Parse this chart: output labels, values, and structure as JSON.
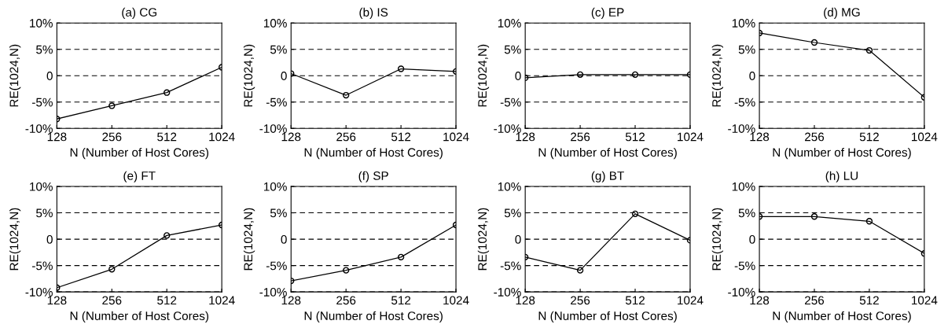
{
  "chart_data": [
    {
      "type": "line",
      "title": "(a) CG",
      "xlabel": "N (Number of Host Cores)",
      "ylabel": "RE(1024,N)",
      "categories": [
        "128",
        "256",
        "512",
        "1024"
      ],
      "series": [
        {
          "color": "#000000",
          "values": [
            -8.2,
            -5.7,
            -3.2,
            1.6
          ]
        }
      ],
      "ylim": [
        -10,
        10
      ],
      "yticks": [
        {
          "value": -10,
          "label": "-10%"
        },
        {
          "value": -5,
          "label": "-5%"
        },
        0,
        {
          "value": 5,
          "label": "5%"
        },
        {
          "value": 10,
          "label": "10%"
        }
      ],
      "grid": "y",
      "marker": "circle",
      "line_style": "solid"
    },
    {
      "type": "line",
      "title": "(b) IS",
      "xlabel": "N (Number of Host Cores)",
      "ylabel": "RE(1024,N)",
      "categories": [
        "128",
        "256",
        "512",
        "1024"
      ],
      "series": [
        {
          "color": "#000000",
          "values": [
            0.4,
            -3.7,
            1.3,
            0.8
          ]
        }
      ],
      "ylim": [
        -10,
        10
      ],
      "yticks": [
        {
          "value": -10,
          "label": "-10%"
        },
        {
          "value": -5,
          "label": "-5%"
        },
        0,
        {
          "value": 5,
          "label": "5%"
        },
        {
          "value": 10,
          "label": "10%"
        }
      ],
      "grid": "y",
      "marker": "circle",
      "line_style": "solid"
    },
    {
      "type": "line",
      "title": "(c) EP",
      "xlabel": "N (Number of Host Cores)",
      "ylabel": "RE(1024,N)",
      "categories": [
        "128",
        "256",
        "512",
        "1024"
      ],
      "series": [
        {
          "color": "#000000",
          "values": [
            -0.4,
            0.2,
            0.2,
            0.2
          ]
        }
      ],
      "ylim": [
        -10,
        10
      ],
      "yticks": [
        {
          "value": -10,
          "label": "-10%"
        },
        {
          "value": -5,
          "label": "-5%"
        },
        0,
        {
          "value": 5,
          "label": "5%"
        },
        {
          "value": 10,
          "label": "10%"
        }
      ],
      "grid": "y",
      "marker": "circle",
      "line_style": "solid"
    },
    {
      "type": "line",
      "title": "(d) MG",
      "xlabel": "N (Number of Host Cores)",
      "ylabel": "RE(1024,N)",
      "categories": [
        "128",
        "256",
        "512",
        "1024"
      ],
      "series": [
        {
          "color": "#000000",
          "values": [
            8.1,
            6.3,
            4.8,
            -4.1
          ]
        }
      ],
      "ylim": [
        -10,
        10
      ],
      "yticks": [
        {
          "value": -10,
          "label": "-10%"
        },
        {
          "value": -5,
          "label": "-5%"
        },
        0,
        {
          "value": 5,
          "label": "5%"
        },
        {
          "value": 10,
          "label": "10%"
        }
      ],
      "grid": "y",
      "marker": "circle",
      "line_style": "solid"
    },
    {
      "type": "line",
      "title": "(e) FT",
      "xlabel": "N (Number of Host Cores)",
      "ylabel": "RE(1024,N)",
      "categories": [
        "128",
        "256",
        "512",
        "1024"
      ],
      "series": [
        {
          "color": "#000000",
          "values": [
            -9.2,
            -5.7,
            0.7,
            2.7
          ]
        }
      ],
      "ylim": [
        -10,
        10
      ],
      "yticks": [
        {
          "value": -10,
          "label": "-10%"
        },
        {
          "value": -5,
          "label": "-5%"
        },
        0,
        {
          "value": 5,
          "label": "5%"
        },
        {
          "value": 10,
          "label": "10%"
        }
      ],
      "grid": "y",
      "marker": "circle",
      "line_style": "solid"
    },
    {
      "type": "line",
      "title": "(f) SP",
      "xlabel": "N (Number of Host Cores)",
      "ylabel": "RE(1024,N)",
      "categories": [
        "128",
        "256",
        "512",
        "1024"
      ],
      "series": [
        {
          "color": "#000000",
          "values": [
            -7.9,
            -5.9,
            -3.4,
            2.7
          ]
        }
      ],
      "ylim": [
        -10,
        10
      ],
      "yticks": [
        {
          "value": -10,
          "label": "-10%"
        },
        {
          "value": -5,
          "label": "-5%"
        },
        0,
        {
          "value": 5,
          "label": "5%"
        },
        {
          "value": 10,
          "label": "10%"
        }
      ],
      "grid": "y",
      "marker": "circle",
      "line_style": "solid"
    },
    {
      "type": "line",
      "title": "(g) BT",
      "xlabel": "N (Number of Host Cores)",
      "ylabel": "RE(1024,N)",
      "categories": [
        "128",
        "256",
        "512",
        "1024"
      ],
      "series": [
        {
          "color": "#000000",
          "values": [
            -3.4,
            -5.9,
            4.8,
            -0.2
          ]
        }
      ],
      "ylim": [
        -10,
        10
      ],
      "yticks": [
        {
          "value": -10,
          "label": "-10%"
        },
        {
          "value": -5,
          "label": "-5%"
        },
        0,
        {
          "value": 5,
          "label": "5%"
        },
        {
          "value": 10,
          "label": "10%"
        }
      ],
      "grid": "y",
      "marker": "circle",
      "line_style": "solid"
    },
    {
      "type": "line",
      "title": "(h) LU",
      "xlabel": "N (Number of Host Cores)",
      "ylabel": "RE(1024,N)",
      "categories": [
        "128",
        "256",
        "512",
        "1024"
      ],
      "series": [
        {
          "color": "#000000",
          "values": [
            4.3,
            4.3,
            3.4,
            -2.7
          ]
        }
      ],
      "ylim": [
        -10,
        10
      ],
      "yticks": [
        {
          "value": -10,
          "label": "-10%"
        },
        {
          "value": -5,
          "label": "-5%"
        },
        0,
        {
          "value": 5,
          "label": "5%"
        },
        {
          "value": 10,
          "label": "10%"
        }
      ],
      "grid": "y",
      "marker": "circle",
      "line_style": "solid"
    }
  ]
}
